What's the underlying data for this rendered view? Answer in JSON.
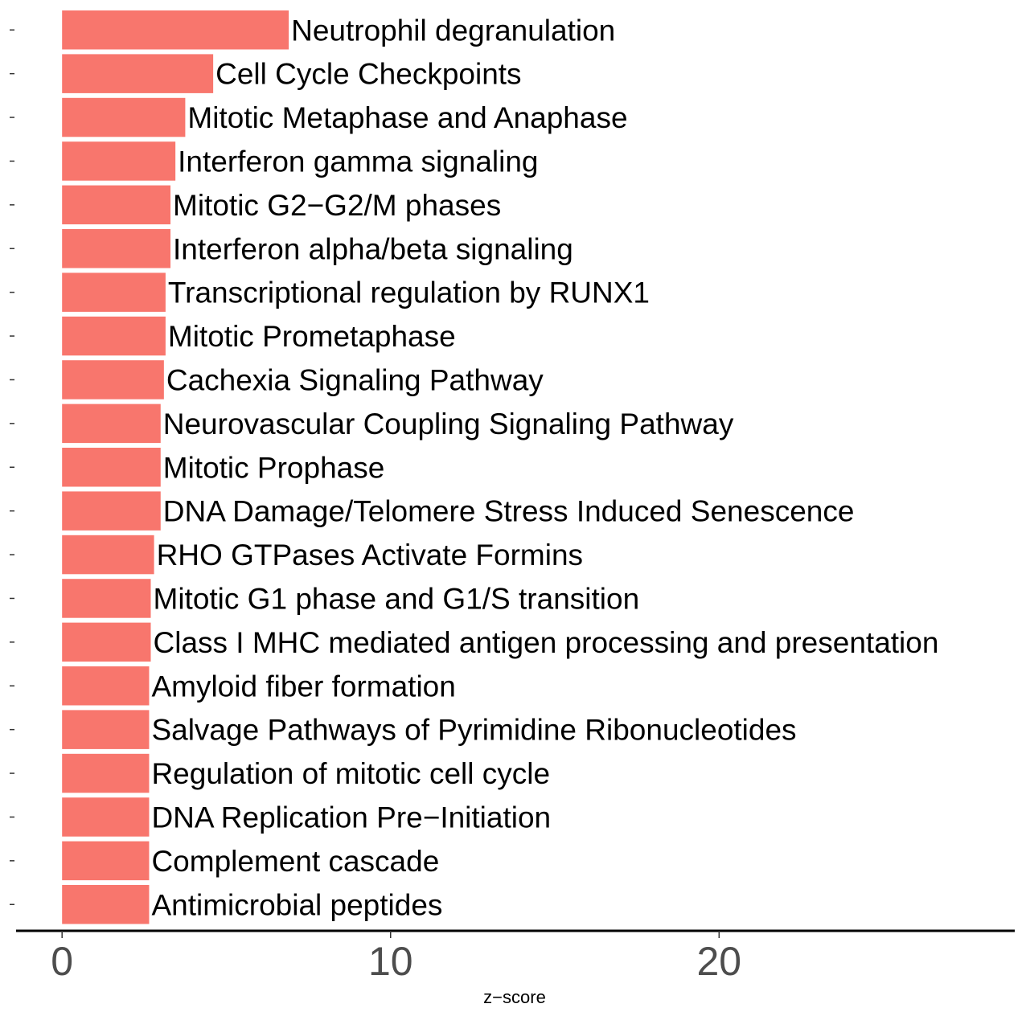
{
  "chart_data": {
    "type": "bar",
    "orientation": "horizontal",
    "xlabel": "z−score",
    "ylabel": "",
    "xlim": [
      -1.4,
      29
    ],
    "xticks": [
      0,
      10,
      20
    ],
    "grid": false,
    "legend": "none",
    "bar_color": "#F8766D",
    "categories": [
      "Neutrophil degranulation",
      "Cell Cycle Checkpoints",
      "Mitotic Metaphase and Anaphase",
      "Interferon gamma signaling",
      "Mitotic G2−G2/M phases",
      "Interferon alpha/beta signaling",
      "Transcriptional regulation by RUNX1",
      "Mitotic Prometaphase",
      "Cachexia Signaling Pathway",
      "Neurovascular Coupling Signaling Pathway",
      "Mitotic Prophase",
      "DNA Damage/Telomere Stress Induced Senescence",
      "RHO GTPases Activate Formins",
      "Mitotic G1 phase and G1/S transition",
      "Class I MHC mediated antigen processing and presentation",
      "Amyloid fiber formation",
      "Salvage Pathways of Pyrimidine Ribonucleotides",
      "Regulation of mitotic cell cycle",
      "DNA Replication Pre−Initiation",
      "Complement cascade",
      "Antimicrobial peptides"
    ],
    "values": [
      6.9,
      4.6,
      3.75,
      3.45,
      3.3,
      3.3,
      3.15,
      3.15,
      3.1,
      3.0,
      3.0,
      3.0,
      2.8,
      2.7,
      2.7,
      2.65,
      2.65,
      2.65,
      2.65,
      2.65,
      2.65
    ]
  }
}
